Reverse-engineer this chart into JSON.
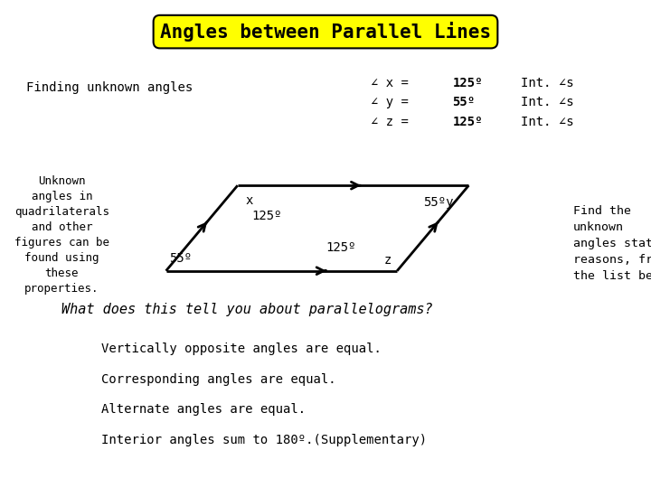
{
  "title": "Angles between Parallel Lines",
  "title_bg": "#FFFF00",
  "title_fontsize": 15,
  "bg_color": "#FFFFFF",
  "text_color": "#000000",
  "finding_unknown": "Finding unknown angles",
  "unknown_angles_text": "Unknown\nangles in\nquadrilaterals\nand other\nfigures can be\nfound using\nthese\nproperties.",
  "angle_results": [
    [
      "∠ x =",
      "125º",
      "Int. ∠s"
    ],
    [
      "∠ y =",
      "55º",
      "Int. ∠s"
    ],
    [
      "∠ z =",
      "125º",
      "Int. ∠s"
    ]
  ],
  "find_text": "Find the\nunknown\nangles stating\nreasons, from\nthe list below.",
  "what_question": "What does this tell you about parallelograms?",
  "list_items": [
    "Vertically opposite angles are equal.",
    "Corresponding angles are equal.",
    "Alternate angles are equal.",
    "Interior angles sum to 180º.(Supplementary)"
  ],
  "BL": [
    0.255,
    0.445
  ],
  "TL": [
    0.365,
    0.62
  ],
  "TR": [
    0.72,
    0.62
  ],
  "BR": [
    0.61,
    0.445
  ],
  "line_color": "#000000",
  "linewidth": 2.0,
  "labels": {
    "x_label": "x",
    "x125": "125º",
    "y55": "55ºy",
    "z_label": "z",
    "z125": "125º",
    "bottom55": "55º"
  }
}
